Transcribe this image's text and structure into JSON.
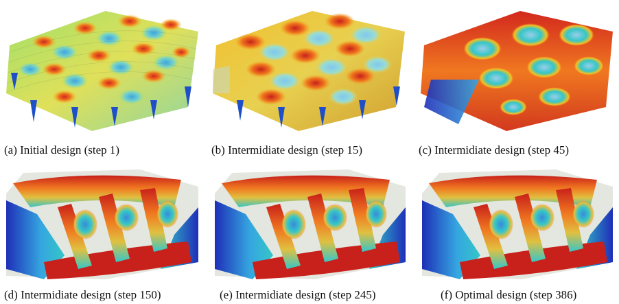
{
  "figure": {
    "panels": [
      {
        "caption": "(a) Initial design (step 1)"
      },
      {
        "caption": "(b) Intermidiate design (step 15)"
      },
      {
        "caption": "(c) Intermidiate design (step 45)"
      },
      {
        "caption": "(d) Intermidiate design (step 150)"
      },
      {
        "caption": "(e) Intermidiate design (step 245)"
      },
      {
        "caption": "(f) Optimal design (step 386)"
      }
    ],
    "colormap": [
      "#1e2fb8",
      "#1fa3e0",
      "#35d6c8",
      "#c8e04a",
      "#f5c020",
      "#f0781e",
      "#d2281e"
    ]
  }
}
